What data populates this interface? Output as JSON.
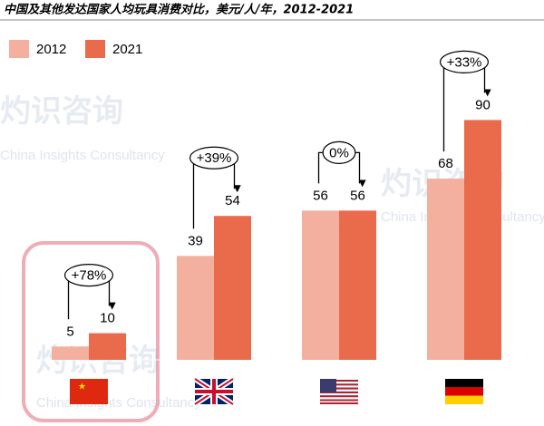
{
  "chart_data": {
    "type": "bar",
    "title": "中国及其他发达国家人均玩具消费对比，美元/人/年，2012-2021",
    "categories": [
      null,
      null,
      null,
      null
    ],
    "series": [
      {
        "name": "2012",
        "color": "#f4b09e",
        "values": [
          5,
          39,
          56,
          68
        ]
      },
      {
        "name": "2021",
        "color": "#ea6b4c",
        "values": [
          10,
          54,
          56,
          90
        ]
      }
    ],
    "annotations": [
      "+78%",
      "+39%",
      "0%",
      "+33%"
    ],
    "watermark": [
      "灼识咨询",
      "China Insights Consultancy"
    ]
  }
}
